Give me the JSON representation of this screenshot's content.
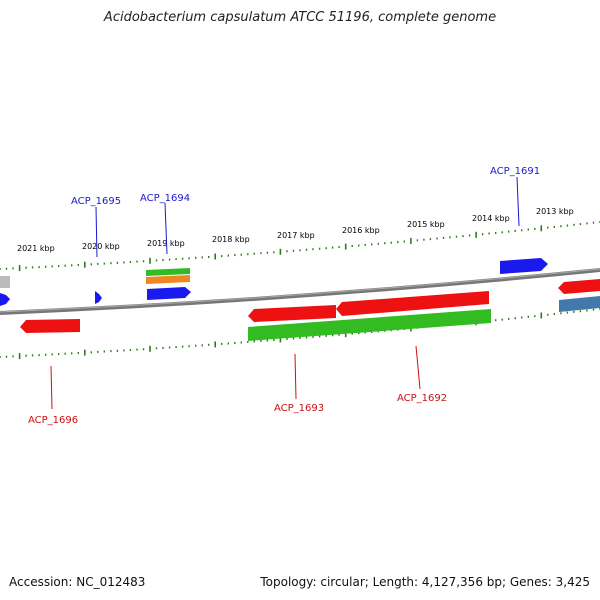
{
  "title": "Acidobacterium capsulatum ATCC 51196, complete genome",
  "footer": {
    "accession": "Accession: NC_012483",
    "summary": "Topology: circular; Length: 4,127,356 bp; Genes: 3,425"
  },
  "colors": {
    "backbone": "#7a7a7a",
    "tick": "#2e7d1a",
    "forward_label": "#1a1acc",
    "reverse_label": "#cc1111",
    "cds_forward": "#1a1aee",
    "cds_reverse": "#ee1111",
    "gene_green": "#33bb22",
    "gene_orange": "#ee8822",
    "gene_steel": "#4477aa",
    "gene_gray": "#bbbbbb"
  },
  "scale_labels": [
    "2021 kbp",
    "2020 kbp",
    "2019 kbp",
    "2018 kbp",
    "2017 kbp",
    "2016 kbp",
    "2015 kbp",
    "2014 kbp",
    "2013 kbp"
  ],
  "gene_labels": [
    {
      "text": "ACP_1695",
      "strand": "forward"
    },
    {
      "text": "ACP_1694",
      "strand": "forward"
    },
    {
      "text": "ACP_1691",
      "strand": "forward"
    },
    {
      "text": "ACP_1696",
      "strand": "reverse"
    },
    {
      "text": "ACP_1693",
      "strand": "reverse"
    },
    {
      "text": "ACP_1692",
      "strand": "reverse"
    }
  ]
}
